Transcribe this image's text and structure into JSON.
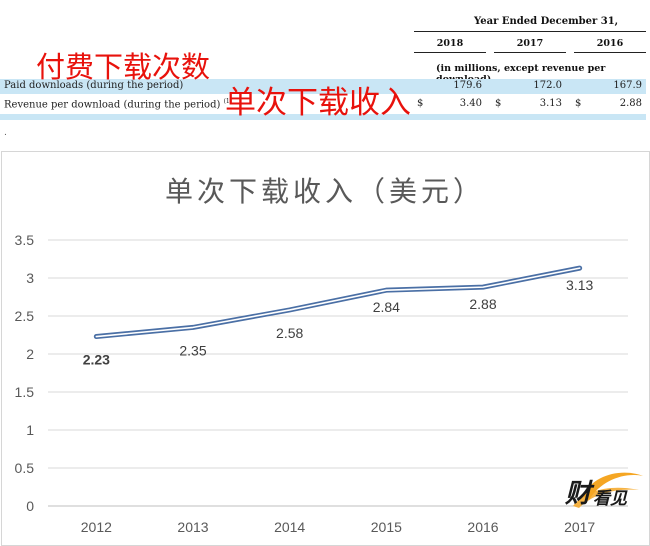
{
  "table": {
    "period_header": "Year Ended December 31,",
    "years": [
      "2018",
      "2017",
      "2016"
    ],
    "units_note": "(in millions, except revenue per download)",
    "rows": [
      {
        "label": "Paid downloads (during the period)",
        "values": [
          "179.6",
          "172.0",
          "167.9"
        ]
      },
      {
        "label": "Revenue per download (during the period)",
        "footnote": "(1)",
        "values": [
          "3.40",
          "3.13",
          "2.88"
        ],
        "currency": "$"
      }
    ],
    "stray_mark": "."
  },
  "annotations": {
    "paid_downloads": "付费下载次数",
    "revenue_per_download": "单次下载收入"
  },
  "chart_data": {
    "type": "line",
    "title": "单次下载收入（美元）",
    "x": [
      "2012",
      "2013",
      "2014",
      "2015",
      "2016",
      "2017"
    ],
    "series": [
      {
        "values": [
          2.23,
          2.35,
          2.58,
          2.84,
          2.88,
          3.13
        ]
      }
    ],
    "data_labels": [
      "2.23",
      "2.35",
      "2.58",
      "2.84",
      "2.88",
      "3.13"
    ],
    "yticks": [
      "0",
      "0.5",
      "1",
      "1.5",
      "2",
      "2.5",
      "3",
      "3.5"
    ],
    "ylim": [
      0,
      3.5
    ],
    "grid": true,
    "legend": "none",
    "line_color": "#4a6fa5"
  },
  "watermark": {
    "text": "财看见",
    "colors": {
      "dark": "#1a1a1a",
      "accent": "#f5a623"
    }
  }
}
